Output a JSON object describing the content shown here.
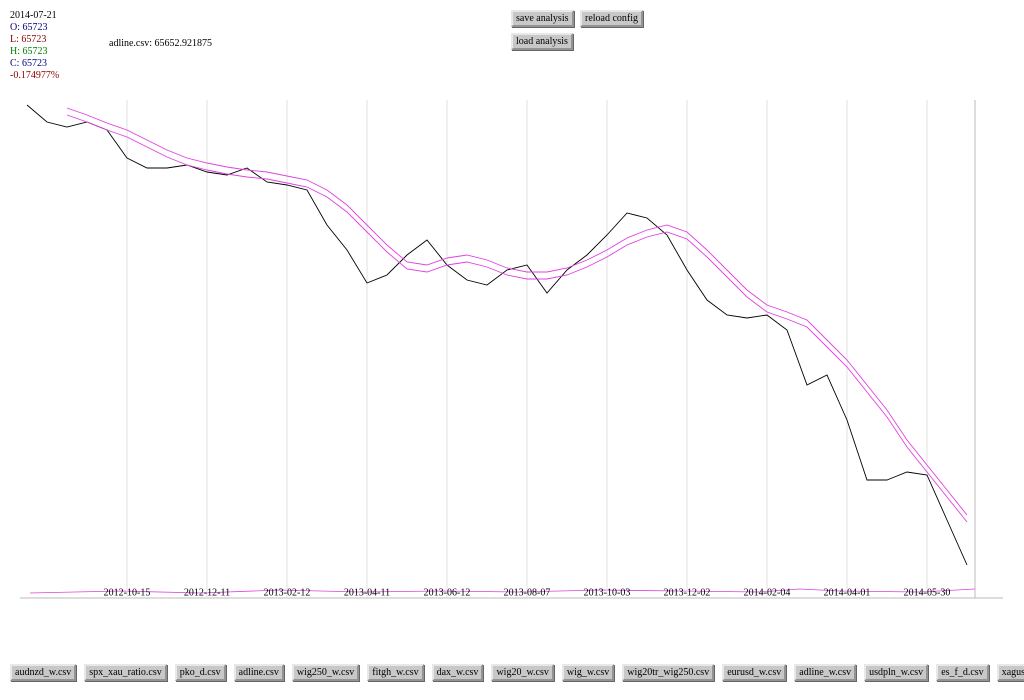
{
  "info": {
    "date": "2014-07-21",
    "open": "O: 65723",
    "low": "L: 65723",
    "high": "H: 65723",
    "close": "C: 65723",
    "change": "-0.174977%"
  },
  "cursor_value": "adline.csv: 65652.921875",
  "toolbar": [
    "save analysis",
    "reload config",
    "load analysis"
  ],
  "files": [
    "audnzd_w.csv",
    "spx_xau_ratio.csv",
    "pko_d.csv",
    "adline.csv",
    "wig250_w.csv",
    "fitgh_w.csv",
    "dax_w.csv",
    "wig20_w.csv",
    "wig_w.csv",
    "wig20tr_wig250.csv",
    "eurusd_w.csv",
    "adline_w.csv",
    "usdpln_w.csv",
    "es_f_d.csv",
    "xagusd_q.csv"
  ],
  "chart_data": {
    "type": "line",
    "categories": [
      null,
      null,
      null,
      null,
      null,
      "2012-10-15",
      null,
      null,
      null,
      "2012-12-11",
      null,
      null,
      null,
      "2013-02-12",
      null,
      null,
      null,
      "2013-04-11",
      null,
      null,
      null,
      "2013-06-12",
      null,
      null,
      null,
      "2013-08-07",
      null,
      null,
      null,
      "2013-10-03",
      null,
      null,
      null,
      "2013-12-02",
      null,
      null,
      null,
      "2014-02-04",
      null,
      null,
      null,
      "2014-04-01",
      null,
      null,
      null,
      "2014-05-30",
      null,
      null
    ],
    "ylim": [
      0,
      500
    ],
    "series": [
      {
        "color": "#000000",
        "values": [
          495,
          478,
          473,
          478,
          470,
          442,
          432,
          432,
          435,
          428,
          425,
          432,
          418,
          415,
          410,
          375,
          350,
          317,
          325,
          345,
          360,
          335,
          320,
          315,
          330,
          335,
          307,
          330,
          345,
          365,
          387,
          382,
          365,
          330,
          300,
          285,
          282,
          285,
          270,
          215,
          225,
          180,
          120,
          120,
          128,
          125,
          80,
          35
        ]
      },
      {
        "color": "#e040e0",
        "values": [
          null,
          null,
          492,
          485,
          477,
          470,
          460,
          450,
          442,
          437,
          433,
          430,
          428,
          424,
          420,
          410,
          395,
          375,
          355,
          338,
          335,
          342,
          345,
          340,
          332,
          328,
          328,
          332,
          340,
          350,
          362,
          370,
          375,
          368,
          350,
          330,
          310,
          295,
          288,
          280,
          260,
          240,
          215,
          190,
          160,
          135,
          110,
          85
        ]
      },
      {
        "color": "#e040e0",
        "values": [
          null,
          null,
          485,
          478,
          470,
          463,
          453,
          443,
          435,
          430,
          426,
          423,
          421,
          417,
          413,
          403,
          388,
          368,
          348,
          331,
          328,
          335,
          338,
          333,
          325,
          321,
          321,
          325,
          333,
          343,
          355,
          363,
          368,
          361,
          343,
          323,
          303,
          288,
          281,
          273,
          253,
          233,
          208,
          183,
          153,
          128,
          103,
          78
        ]
      }
    ]
  }
}
